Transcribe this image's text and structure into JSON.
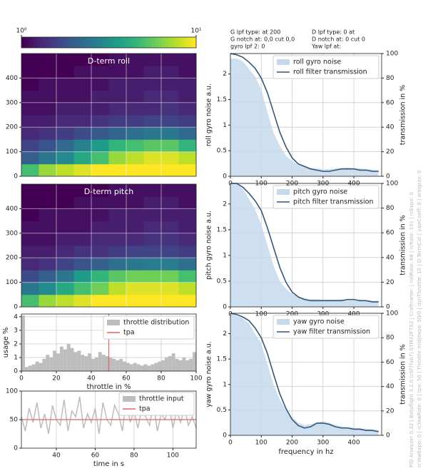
{
  "info_text": [
    "G lpf type:  at 200",
    "G notch at: 0,0 cut 0,0",
    "gyro lpf 2: 0",
    "D lpf type: 0 at",
    "D notch at: 0 cut 0",
    "Yaw lpf at:"
  ],
  "side_text": [
    "PID Analyzer 0.32 | Betaflight 3.2.0 (c6f7fab7) STM32F7X2 | Craftname: | rollRate: 68 | rcRate: 101 | rcExpo: 0",
    "rcYawExpo: 0 | rcYawRate: 0 | tpa: 50 | Throttle mid/expo: 50/0 | dynThrottle: 10 | D TermCut | yawCoeff: 0 | antigrav: 0"
  ],
  "chart_data": [
    {
      "type": "colorbar",
      "lim": [
        1,
        10
      ],
      "log": true,
      "colormap": "viridis",
      "ticks": [
        {
          "value": 1,
          "label": "10⁰"
        },
        {
          "value": 10,
          "label": "10¹"
        }
      ]
    },
    {
      "type": "heatmap",
      "title": "D-term roll",
      "xbins": [
        0,
        10,
        20,
        30,
        40,
        50,
        60,
        70,
        80,
        90,
        100
      ],
      "ybins": [
        0,
        50,
        100,
        150,
        200,
        250,
        300,
        350,
        400,
        450,
        500
      ],
      "xlim": [
        0,
        100
      ],
      "ylim": [
        0,
        500
      ],
      "yticks": [
        0,
        100,
        200,
        300,
        400
      ],
      "xgrid": [
        20,
        40,
        60,
        80
      ],
      "values": [
        [
          5,
          7,
          8,
          9,
          10,
          10,
          10,
          10,
          10,
          10
        ],
        [
          2,
          2.5,
          3,
          4,
          5,
          7,
          8,
          9,
          9,
          8
        ],
        [
          1.6,
          1.8,
          2.2,
          2.8,
          3.5,
          4.5,
          5,
          5.5,
          5.5,
          4.5
        ],
        [
          1.3,
          1.4,
          1.5,
          1.7,
          1.9,
          2.1,
          2.3,
          2.5,
          2.5,
          2.2
        ],
        [
          1.2,
          1.2,
          1.3,
          1.3,
          1.4,
          1.5,
          1.5,
          1.6,
          1.6,
          1.5
        ],
        [
          1.1,
          1.1,
          1.2,
          1.2,
          1.2,
          1.3,
          1.3,
          1.3,
          1.4,
          1.3
        ],
        [
          1.1,
          1.1,
          1.1,
          1.1,
          1.2,
          1.2,
          1.2,
          1.3,
          1.3,
          1.2
        ],
        [
          1,
          1.1,
          1.1,
          1.1,
          1.1,
          1.2,
          1.2,
          1.2,
          1.2,
          1.2
        ],
        [
          1,
          1,
          1,
          1.1,
          1.1,
          1.1,
          1.1,
          1.2,
          1.2,
          1.1
        ],
        [
          1,
          1,
          1,
          1,
          1,
          1.1,
          1.1,
          1.1,
          1.1,
          1.1
        ]
      ]
    },
    {
      "type": "heatmap",
      "title": "D-term pitch",
      "xbins": [
        0,
        10,
        20,
        30,
        40,
        50,
        60,
        70,
        80,
        90,
        100
      ],
      "ybins": [
        0,
        50,
        100,
        150,
        200,
        250,
        300,
        350,
        400,
        450,
        500
      ],
      "xlim": [
        0,
        100
      ],
      "ylim": [
        0,
        500
      ],
      "yticks": [
        0,
        100,
        200,
        300,
        400
      ],
      "xgrid": [
        20,
        40,
        60,
        80
      ],
      "values": [
        [
          5,
          7,
          8,
          9,
          10,
          10,
          10,
          10,
          10,
          10
        ],
        [
          2.5,
          3,
          4,
          5,
          6,
          8,
          9,
          9,
          9,
          8
        ],
        [
          1.7,
          2,
          2.5,
          3.5,
          4.5,
          5.5,
          6,
          6,
          6,
          5
        ],
        [
          1.3,
          1.4,
          1.6,
          1.8,
          2,
          2.3,
          2.5,
          2.6,
          2.6,
          2.3
        ],
        [
          1.2,
          1.2,
          1.3,
          1.4,
          1.4,
          1.5,
          1.6,
          1.6,
          1.6,
          1.5
        ],
        [
          1.1,
          1.1,
          1.2,
          1.2,
          1.3,
          1.3,
          1.3,
          1.4,
          1.4,
          1.3
        ],
        [
          1.1,
          1.1,
          1.1,
          1.1,
          1.2,
          1.2,
          1.2,
          1.3,
          1.3,
          1.2
        ],
        [
          1,
          1.1,
          1.1,
          1.1,
          1.1,
          1.2,
          1.2,
          1.2,
          1.2,
          1.2
        ],
        [
          1,
          1,
          1,
          1.1,
          1.1,
          1.1,
          1.1,
          1.2,
          1.2,
          1.1
        ],
        [
          1,
          1,
          1,
          1,
          1,
          1.1,
          1.1,
          1.1,
          1.1,
          1.1
        ]
      ]
    },
    {
      "type": "histogram",
      "xlabel": "throttle in %",
      "ylabel": "usage %",
      "xlim": [
        0,
        100
      ],
      "ylim": [
        0,
        4.2
      ],
      "xticks": [
        0,
        20,
        40,
        60,
        80,
        100
      ],
      "yticks": [
        0,
        1,
        2,
        3,
        4
      ],
      "bins": [
        0,
        2,
        4,
        6,
        8,
        10,
        12,
        14,
        16,
        18,
        20,
        22,
        24,
        26,
        28,
        30,
        32,
        34,
        36,
        38,
        40,
        42,
        44,
        46,
        48,
        50,
        52,
        54,
        56,
        58,
        60,
        62,
        64,
        66,
        68,
        70,
        72,
        74,
        76,
        78,
        80,
        82,
        84,
        86,
        88,
        90,
        92,
        94,
        96,
        98,
        100
      ],
      "series": [
        {
          "name": "throttle distribution",
          "color": "#bdbdbd",
          "values": [
            4.1,
            0.3,
            0.4,
            0.5,
            0.7,
            0.6,
            0.9,
            1.2,
            1.0,
            1.5,
            1.3,
            1.8,
            1.6,
            2.0,
            1.7,
            1.4,
            1.5,
            1.2,
            1.1,
            1.3,
            0.9,
            1.0,
            1.4,
            1.2,
            1.1,
            1.0,
            0.9,
            0.8,
            0.9,
            0.7,
            0.6,
            0.5,
            0.6,
            0.5,
            0.4,
            0.5,
            0.4,
            0.5,
            0.6,
            0.7,
            0.8,
            1.0,
            1.1,
            1.3,
            0.9,
            0.8,
            1.0,
            0.8,
            0.9,
            1.4
          ]
        }
      ],
      "tpa": {
        "name": "tpa",
        "value": 50,
        "color": "#e06666"
      }
    },
    {
      "type": "line",
      "xlabel": "time in s",
      "xlim": [
        22,
        112
      ],
      "ylim": [
        0,
        100
      ],
      "xticks": [
        40,
        60,
        80,
        100
      ],
      "yticks": [
        0,
        50,
        100
      ],
      "x": [
        22,
        24,
        26,
        28,
        30,
        32,
        34,
        36,
        38,
        40,
        42,
        44,
        46,
        48,
        50,
        52,
        54,
        56,
        58,
        60,
        62,
        64,
        66,
        68,
        70,
        72,
        74,
        76,
        78,
        80,
        82,
        84,
        86,
        88,
        90,
        92,
        94,
        96,
        98,
        100,
        102,
        104,
        106,
        108,
        110,
        112
      ],
      "series": [
        {
          "name": "throttle input",
          "color": "#bdbdbd",
          "values": [
            55,
            30,
            70,
            45,
            80,
            35,
            60,
            25,
            75,
            50,
            40,
            85,
            30,
            65,
            55,
            90,
            35,
            60,
            45,
            70,
            25,
            80,
            50,
            40,
            75,
            60,
            30,
            85,
            45,
            65,
            35,
            70,
            55,
            40,
            80,
            30,
            60,
            50,
            75,
            35,
            65,
            45,
            70,
            40,
            55,
            35
          ]
        }
      ],
      "tpa": {
        "name": "tpa",
        "value": 50,
        "color": "#e06666"
      }
    },
    {
      "type": "noise",
      "ylabel": "roll gyro noise a.u.",
      "y2label": "transmission in %",
      "xlim": [
        0,
        490
      ],
      "ylim": [
        0,
        2.4
      ],
      "y2lim": [
        0,
        100
      ],
      "xticks": [
        0,
        100,
        200,
        300,
        400
      ],
      "yticks": [
        0,
        0.5,
        1,
        1.5,
        2
      ],
      "y2ticks": [
        0,
        20,
        40,
        60,
        80,
        100
      ],
      "x": [
        0,
        20,
        40,
        60,
        80,
        100,
        120,
        140,
        160,
        180,
        200,
        220,
        240,
        260,
        280,
        300,
        320,
        340,
        360,
        380,
        400,
        420,
        440,
        460,
        480
      ],
      "series": [
        {
          "name": "roll gyro noise",
          "color": "#c6d9ec",
          "values": [
            2.3,
            2.3,
            2.25,
            2.1,
            1.95,
            1.7,
            1.25,
            0.85,
            0.6,
            0.4,
            0.3,
            0.22,
            0.18,
            0.16,
            0.15,
            0.14,
            0.14,
            0.15,
            0.16,
            0.17,
            0.16,
            0.15,
            0.14,
            0.13,
            0.12
          ]
        },
        {
          "name": "roll filter transmission",
          "color": "#34577a",
          "axis": "y2",
          "values": [
            100,
            99,
            97,
            93,
            88,
            80,
            68,
            52,
            36,
            24,
            15,
            10,
            8,
            6,
            5,
            4,
            4,
            5,
            6,
            6,
            6,
            5,
            5,
            4,
            4
          ]
        }
      ]
    },
    {
      "type": "noise",
      "ylabel": "pitch gyro noise a.u.",
      "y2label": "transmission in %",
      "xlim": [
        0,
        490
      ],
      "ylim": [
        0,
        2.4
      ],
      "y2lim": [
        0,
        100
      ],
      "xticks": [
        0,
        100,
        200,
        300,
        400
      ],
      "yticks": [
        0,
        0.5,
        1,
        1.5,
        2
      ],
      "y2ticks": [
        0,
        20,
        40,
        60,
        80,
        100
      ],
      "x": [
        0,
        20,
        40,
        60,
        80,
        100,
        120,
        140,
        160,
        180,
        200,
        220,
        240,
        260,
        280,
        300,
        320,
        340,
        360,
        380,
        400,
        420,
        440,
        460,
        480
      ],
      "series": [
        {
          "name": "pitch gyro noise",
          "color": "#c6d9ec",
          "values": [
            2.4,
            2.4,
            2.3,
            2.1,
            1.9,
            1.6,
            1.2,
            0.8,
            0.5,
            0.35,
            0.25,
            0.2,
            0.17,
            0.15,
            0.15,
            0.14,
            0.14,
            0.14,
            0.15,
            0.15,
            0.14,
            0.14,
            0.13,
            0.12,
            0.12
          ]
        },
        {
          "name": "pitch filter transmission",
          "color": "#34577a",
          "axis": "y2",
          "values": [
            100,
            100,
            97,
            92,
            86,
            78,
            64,
            48,
            32,
            20,
            12,
            8,
            6,
            5,
            5,
            5,
            5,
            5,
            5,
            6,
            6,
            5,
            5,
            4,
            4
          ]
        }
      ]
    },
    {
      "type": "noise",
      "ylabel": "yaw gyro noise a.u.",
      "y2label": "transmission in %",
      "xlabel": "frequency in hz",
      "xlim": [
        0,
        490
      ],
      "ylim": [
        0,
        2.4
      ],
      "y2lim": [
        0,
        100
      ],
      "xticks": [
        0,
        100,
        200,
        300,
        400
      ],
      "yticks": [
        0,
        0.5,
        1,
        1.5,
        2
      ],
      "y2ticks": [
        0,
        20,
        40,
        60,
        80,
        100
      ],
      "x": [
        0,
        20,
        40,
        60,
        80,
        100,
        120,
        140,
        160,
        180,
        200,
        220,
        240,
        260,
        280,
        300,
        320,
        340,
        360,
        380,
        400,
        420,
        440,
        460,
        480
      ],
      "series": [
        {
          "name": "yaw gyro noise",
          "color": "#c6d9ec",
          "values": [
            2.4,
            2.35,
            2.3,
            2.2,
            2.0,
            1.8,
            1.4,
            1.0,
            0.7,
            0.5,
            0.35,
            0.25,
            0.2,
            0.22,
            0.25,
            0.28,
            0.25,
            0.2,
            0.18,
            0.16,
            0.15,
            0.14,
            0.13,
            0.12,
            0.1
          ]
        },
        {
          "name": "yaw filter transmission",
          "color": "#34577a",
          "axis": "y2",
          "values": [
            100,
            99,
            97,
            94,
            88,
            80,
            67,
            50,
            34,
            22,
            13,
            8,
            6,
            7,
            10,
            10,
            9,
            7,
            6,
            6,
            5,
            5,
            4,
            4,
            3
          ]
        }
      ]
    }
  ]
}
